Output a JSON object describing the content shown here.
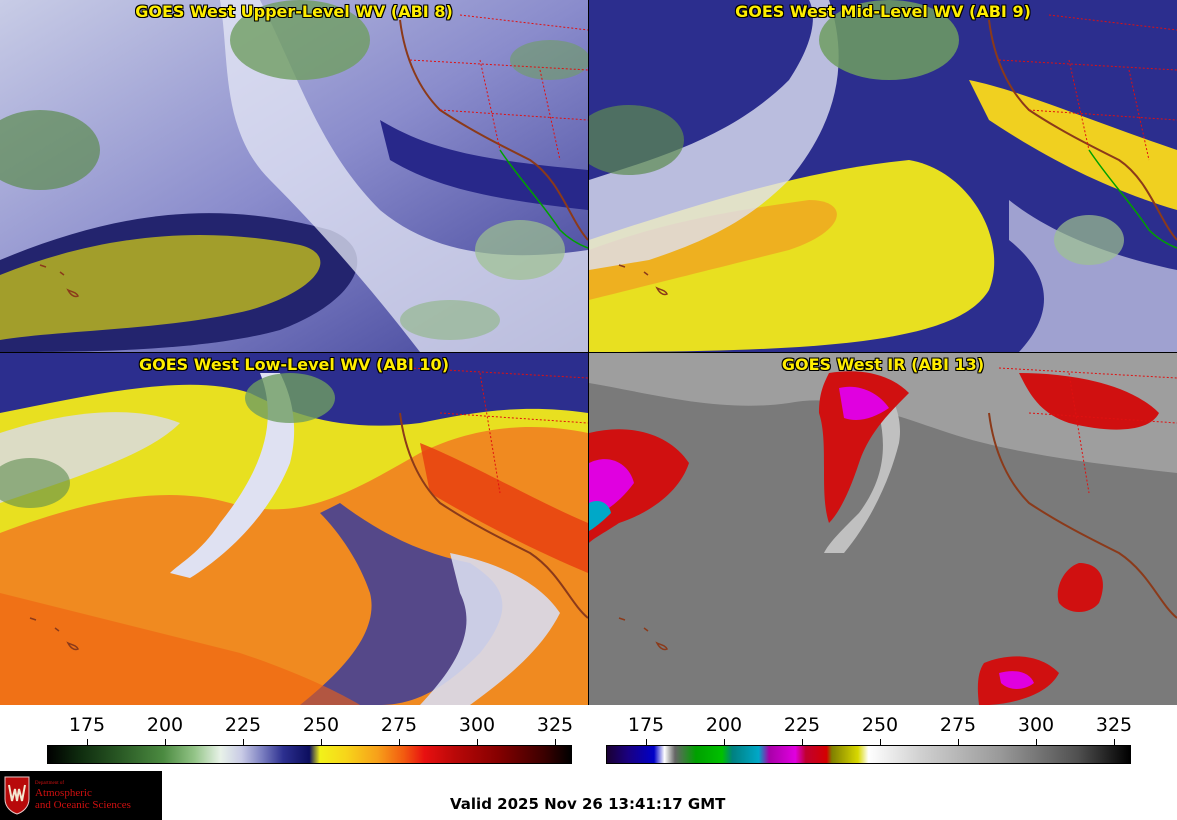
{
  "panels": {
    "upper_level": {
      "title": "GOES West Upper-Level WV (ABI 8)"
    },
    "mid_level": {
      "title": "GOES West Mid-Level WV (ABI 9)"
    },
    "low_level": {
      "title": "GOES West Low-Level WV (ABI 10)"
    },
    "ir": {
      "title": "GOES West IR (ABI 13)"
    }
  },
  "colorbars": {
    "wv": {
      "ticks": [
        "175",
        "200",
        "225",
        "250",
        "275",
        "300",
        "325"
      ]
    },
    "ir": {
      "ticks": [
        "175",
        "200",
        "225",
        "250",
        "275",
        "300",
        "325"
      ]
    }
  },
  "logo": {
    "dept": "Department of",
    "line1": "Atmospheric",
    "line2": "and Oceanic Sciences"
  },
  "valid_time": "Valid 2025 Nov 26 13:41:17 GMT",
  "colors": {
    "title_text": "#ffee00",
    "state_borders": "#e01010",
    "coastline": "#8b3a1a",
    "mexico_coast": "#00a000"
  }
}
